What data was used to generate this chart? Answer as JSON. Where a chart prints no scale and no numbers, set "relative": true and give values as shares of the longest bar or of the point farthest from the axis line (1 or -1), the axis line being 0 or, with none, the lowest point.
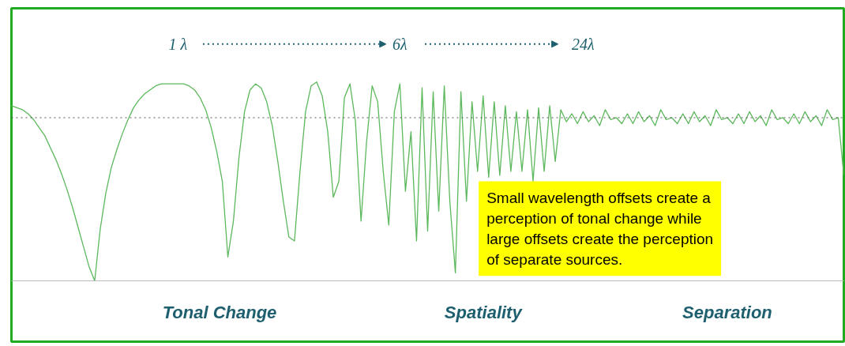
{
  "chart_data": {
    "type": "line",
    "relative": true,
    "color": "#5cb85c",
    "line_style": "solid",
    "marker": "none",
    "grid": false,
    "tick_labels": false,
    "categories": [
      null,
      null,
      null,
      null,
      null,
      null,
      null,
      null,
      null,
      null,
      null,
      null,
      null,
      null,
      null,
      null,
      null,
      null,
      null,
      null,
      null,
      null,
      null,
      null,
      null,
      null,
      null,
      null,
      null,
      null,
      null,
      null,
      null,
      null,
      null,
      null,
      null,
      null,
      null,
      null,
      null,
      null,
      null,
      null,
      null,
      null,
      null,
      null,
      null,
      null,
      null,
      null,
      null,
      null,
      null,
      null,
      null,
      null,
      null,
      null,
      null,
      null,
      null,
      null,
      null,
      null,
      null,
      null,
      null,
      null,
      null,
      null,
      null,
      null,
      null,
      null,
      null,
      null,
      null,
      null,
      null,
      null,
      null,
      null,
      null,
      null,
      null,
      null,
      null,
      null,
      null,
      null,
      null,
      null,
      null,
      null,
      null,
      null,
      null,
      null,
      null,
      null,
      null,
      null,
      null,
      null,
      null,
      null,
      null,
      null,
      null,
      null,
      null,
      null,
      null,
      null,
      null,
      null,
      null,
      null,
      null,
      null,
      null,
      null,
      null,
      null,
      null,
      null,
      null,
      null,
      null,
      null,
      null,
      null,
      null,
      null,
      null,
      null,
      null,
      null,
      null,
      null,
      null,
      null,
      null,
      null,
      null,
      null,
      null,
      null,
      null
    ],
    "values": [
      0.88,
      0.87,
      0.86,
      0.84,
      0.81,
      0.77,
      0.73,
      0.67,
      0.61,
      0.54,
      0.46,
      0.37,
      0.27,
      0.17,
      0.07,
      0,
      0.26,
      0.44,
      0.57,
      0.66,
      0.74,
      0.81,
      0.87,
      0.91,
      0.94,
      0.96,
      0.98,
      0.99,
      0.99,
      0.99,
      0.99,
      0.99,
      0.98,
      0.96,
      0.92,
      0.86,
      0.77,
      0.65,
      0.5,
      0.12,
      0.3,
      0.62,
      0.85,
      0.96,
      0.99,
      0.97,
      0.9,
      0.78,
      0.6,
      0.4,
      0.22,
      0.2,
      0.55,
      0.85,
      0.98,
      1.0,
      0.93,
      0.75,
      0.42,
      0.5,
      0.92,
      0.99,
      0.8,
      0.3,
      0.7,
      0.98,
      0.9,
      0.55,
      0.28,
      0.85,
      0.99,
      0.45,
      0.75,
      0.2,
      0.97,
      0.25,
      0.95,
      0.35,
      0.98,
      0.4,
      0.04,
      0.95,
      0.4,
      0.9,
      0.55,
      0.93,
      0.52,
      0.9,
      0.53,
      0.88,
      0.55,
      0.85,
      0.55,
      0.86,
      0.5,
      0.87,
      0.55,
      0.88,
      0.6,
      0.86,
      0.8,
      0.84,
      0.79,
      0.85,
      0.8,
      0.83,
      0.78,
      0.86,
      0.81,
      0.82,
      0.79,
      0.84,
      0.79,
      0.85,
      0.8,
      0.83,
      0.78,
      0.86,
      0.81,
      0.82,
      0.79,
      0.84,
      0.79,
      0.85,
      0.8,
      0.83,
      0.78,
      0.86,
      0.81,
      0.82,
      0.79,
      0.84,
      0.79,
      0.85,
      0.8,
      0.83,
      0.78,
      0.86,
      0.81,
      0.82,
      0.79,
      0.84,
      0.79,
      0.85,
      0.8,
      0.83,
      0.78,
      0.86,
      0.81,
      0.82,
      0.53
    ],
    "ref_lines": [
      {
        "axis": "y",
        "value": 0.82,
        "color": "#555555",
        "line_style": "dotted"
      }
    ],
    "annotations": [
      "1 λ",
      "6λ",
      "24λ",
      "Tonal Change",
      "Spatiality",
      "Separation",
      "Small wavelength offsets create a\nperception of tonal change while\nlarge offsets create the perception\nof separate sources."
    ]
  }
}
